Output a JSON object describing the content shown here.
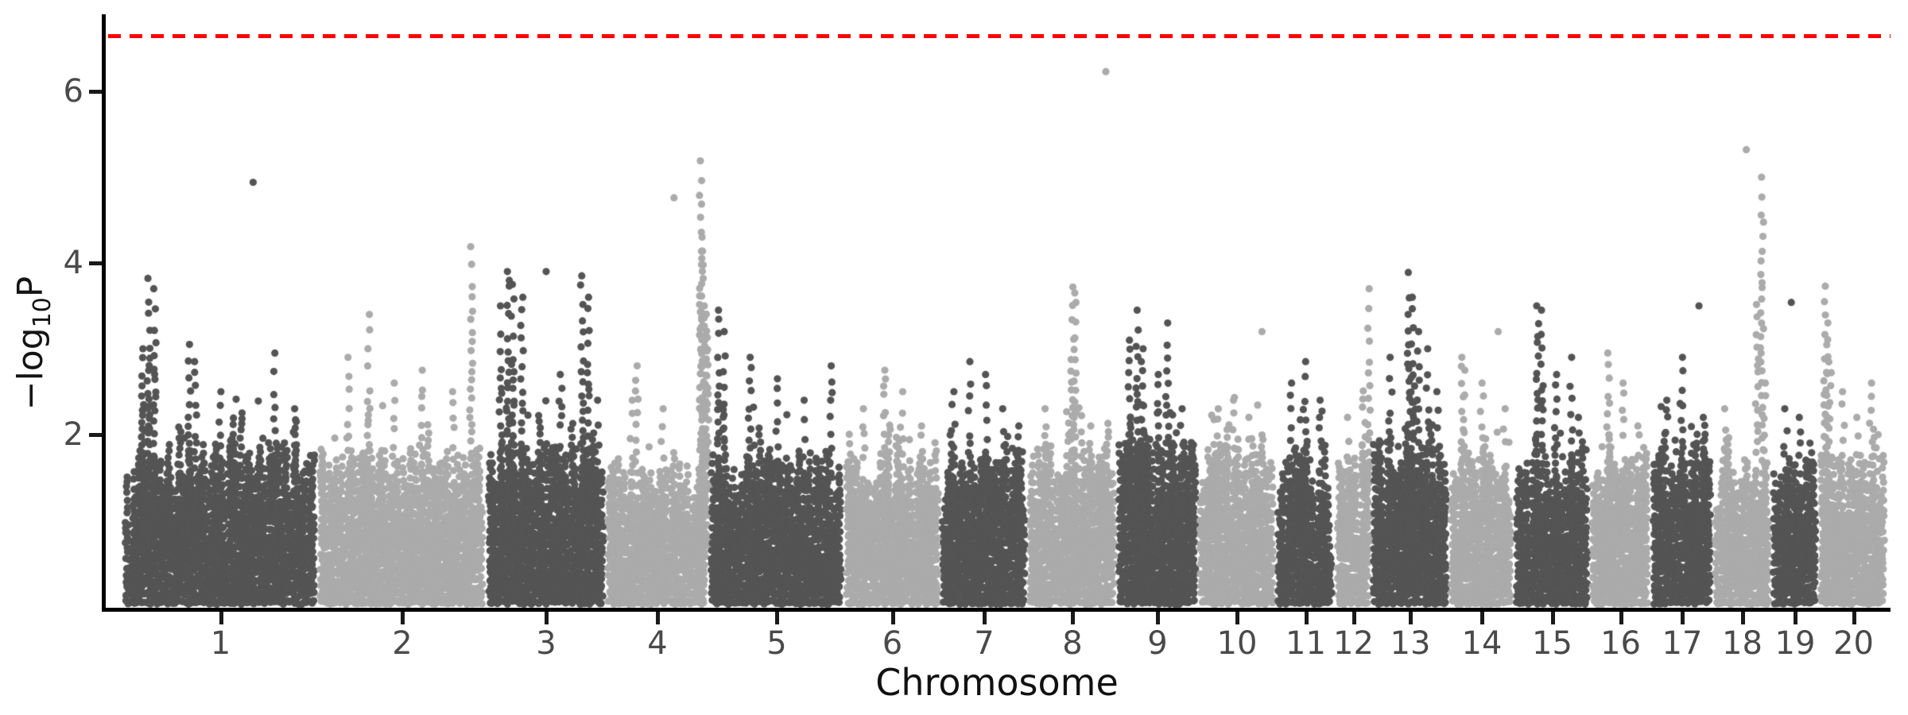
{
  "figure": {
    "kind": "GWAS Manhattan plot",
    "background": "#ffffff"
  },
  "chart_data": {
    "type": "scatter",
    "subtype": "manhattan",
    "title": "",
    "xlabel": "Chromosome",
    "ylabel": "-log10P",
    "ylabel_parts": {
      "prefix": "−log",
      "subscript": "10",
      "suffix": "P"
    },
    "ylim": [
      0,
      6.9
    ],
    "yticks": [
      2,
      4,
      6
    ],
    "grid": false,
    "legend": "none",
    "threshold_line": {
      "value": 6.65,
      "color": "#FF0000",
      "style": "dashed"
    },
    "point_colors": {
      "odd_chromosomes": "#545454",
      "even_chromosomes": "#ABABAB"
    },
    "axis_color": "#000000",
    "tick_label_color": "#4a4a4a",
    "axis_title_color": "#141414",
    "notable_points": [
      {
        "chromosome": "8",
        "neg_log10_p": 6.23
      },
      {
        "chromosome": "18",
        "neg_log10_p": 5.32
      },
      {
        "chromosome": "4",
        "neg_log10_p": 5.19
      },
      {
        "chromosome": "1",
        "neg_log10_p": 4.94
      },
      {
        "chromosome": "2",
        "neg_log10_p": 4.19
      }
    ],
    "chromosomes": [
      {
        "label": "1",
        "rel_width": 245,
        "base_max": 1.9,
        "peaks": [
          [
            0.1,
            3.0,
            0
          ],
          [
            0.13,
            3.82,
            0
          ],
          [
            0.16,
            3.7,
            0
          ],
          [
            0.34,
            3.05,
            0
          ],
          [
            0.37,
            2.85,
            0
          ],
          [
            0.5,
            2.5,
            0
          ],
          [
            0.667,
            4.94,
            1
          ],
          [
            0.78,
            2.95,
            0
          ],
          [
            0.88,
            2.3,
            0
          ]
        ]
      },
      {
        "label": "2",
        "rel_width": 212,
        "base_max": 1.8,
        "peaks": [
          [
            0.18,
            2.9,
            0
          ],
          [
            0.3,
            3.4,
            0
          ],
          [
            0.45,
            2.6,
            0
          ],
          [
            0.62,
            2.75,
            0
          ],
          [
            0.8,
            2.5,
            0
          ],
          [
            0.91,
            4.19,
            0
          ]
        ]
      },
      {
        "label": "3",
        "rel_width": 150,
        "base_max": 1.85,
        "peaks": [
          [
            0.12,
            3.5,
            0
          ],
          [
            0.18,
            3.9,
            0
          ],
          [
            0.22,
            3.75,
            0
          ],
          [
            0.3,
            3.6,
            0
          ],
          [
            0.5,
            3.9,
            1
          ],
          [
            0.62,
            2.7,
            0
          ],
          [
            0.8,
            3.85,
            0
          ],
          [
            0.85,
            3.6,
            0
          ],
          [
            0.93,
            2.4,
            0
          ]
        ]
      },
      {
        "label": "4",
        "rel_width": 130,
        "base_max": 1.7,
        "peaks": [
          [
            0.25,
            2.4,
            0
          ],
          [
            0.3,
            2.8,
            0
          ],
          [
            0.55,
            2.3,
            0
          ],
          [
            0.66,
            4.76,
            1
          ],
          [
            0.915,
            5.19,
            1
          ],
          [
            0.92,
            4.96,
            0
          ],
          [
            0.93,
            4.3,
            0
          ],
          [
            0.96,
            3.5,
            0
          ]
        ]
      },
      {
        "label": "5",
        "rel_width": 170,
        "base_max": 1.8,
        "peaks": [
          [
            0.07,
            3.45,
            0
          ],
          [
            0.11,
            3.2,
            0
          ],
          [
            0.3,
            2.9,
            0
          ],
          [
            0.5,
            2.65,
            0
          ],
          [
            0.7,
            2.4,
            0
          ],
          [
            0.9,
            2.8,
            0
          ]
        ]
      },
      {
        "label": "6",
        "rel_width": 121,
        "base_max": 1.75,
        "peaks": [
          [
            0.2,
            2.3,
            0
          ],
          [
            0.42,
            2.75,
            0
          ],
          [
            0.6,
            2.5,
            0
          ],
          [
            0.8,
            2.1,
            0
          ]
        ]
      },
      {
        "label": "7",
        "rel_width": 110,
        "base_max": 1.8,
        "peaks": [
          [
            0.15,
            2.5,
            0
          ],
          [
            0.33,
            2.85,
            0
          ],
          [
            0.52,
            2.7,
            0
          ],
          [
            0.72,
            2.3,
            0
          ],
          [
            0.9,
            2.1,
            0
          ]
        ]
      },
      {
        "label": "8",
        "rel_width": 112,
        "base_max": 1.85,
        "peaks": [
          [
            0.2,
            2.3,
            0
          ],
          [
            0.5,
            3.72,
            0
          ],
          [
            0.53,
            3.65,
            0
          ],
          [
            0.7,
            2.1,
            0
          ],
          [
            0.875,
            6.23,
            1
          ]
        ]
      },
      {
        "label": "9",
        "rel_width": 102,
        "base_max": 2.0,
        "peaks": [
          [
            0.15,
            3.1,
            0
          ],
          [
            0.25,
            3.45,
            0
          ],
          [
            0.32,
            3.0,
            0
          ],
          [
            0.5,
            2.7,
            0
          ],
          [
            0.62,
            3.3,
            0
          ],
          [
            0.8,
            2.3,
            0
          ]
        ]
      },
      {
        "label": "10",
        "rel_width": 98,
        "base_max": 1.95,
        "peaks": [
          [
            0.25,
            2.3,
            0
          ],
          [
            0.45,
            2.4,
            0
          ],
          [
            0.65,
            2.2,
            0
          ],
          [
            0.82,
            3.2,
            1
          ]
        ]
      },
      {
        "label": "11",
        "rel_width": 75,
        "base_max": 1.85,
        "peaks": [
          [
            0.25,
            2.6,
            0
          ],
          [
            0.5,
            2.85,
            0
          ],
          [
            0.75,
            2.4,
            0
          ]
        ]
      },
      {
        "label": "12",
        "rel_width": 45,
        "base_max": 1.9,
        "peaks": [
          [
            0.35,
            2.2,
            0
          ],
          [
            0.93,
            3.7,
            0
          ]
        ]
      },
      {
        "label": "13",
        "rel_width": 98,
        "base_max": 1.95,
        "peaks": [
          [
            0.25,
            2.9,
            0
          ],
          [
            0.48,
            3.89,
            0
          ],
          [
            0.52,
            3.6,
            0
          ],
          [
            0.6,
            3.2,
            0
          ],
          [
            0.72,
            3.0,
            0
          ],
          [
            0.85,
            2.5,
            0
          ]
        ]
      },
      {
        "label": "14",
        "rel_width": 82,
        "base_max": 1.8,
        "peaks": [
          [
            0.2,
            2.9,
            0
          ],
          [
            0.23,
            2.75,
            0
          ],
          [
            0.5,
            2.6,
            0
          ],
          [
            0.75,
            3.2,
            1
          ],
          [
            0.85,
            2.3,
            0
          ]
        ]
      },
      {
        "label": "15",
        "rel_width": 95,
        "base_max": 1.75,
        "peaks": [
          [
            0.3,
            3.5,
            0
          ],
          [
            0.36,
            3.45,
            0
          ],
          [
            0.55,
            2.7,
            0
          ],
          [
            0.75,
            2.9,
            0
          ],
          [
            0.85,
            2.2,
            0
          ]
        ]
      },
      {
        "label": "16",
        "rel_width": 77,
        "base_max": 1.8,
        "peaks": [
          [
            0.3,
            2.95,
            0
          ],
          [
            0.55,
            2.6,
            0
          ],
          [
            0.78,
            2.1,
            0
          ]
        ]
      },
      {
        "label": "17",
        "rel_width": 78,
        "base_max": 1.85,
        "peaks": [
          [
            0.25,
            2.4,
            0
          ],
          [
            0.5,
            2.9,
            0
          ],
          [
            0.77,
            3.5,
            1
          ],
          [
            0.85,
            2.2,
            0
          ]
        ]
      },
      {
        "label": "18",
        "rel_width": 73,
        "base_max": 1.7,
        "peaks": [
          [
            0.2,
            2.3,
            0
          ],
          [
            0.57,
            5.32,
            1
          ],
          [
            0.84,
            5.0,
            0
          ],
          [
            0.9,
            2.6,
            0
          ]
        ]
      },
      {
        "label": "19",
        "rel_width": 60,
        "base_max": 1.8,
        "peaks": [
          [
            0.3,
            2.3,
            0
          ],
          [
            0.42,
            3.54,
            1
          ],
          [
            0.6,
            2.2,
            0
          ],
          [
            0.8,
            1.9,
            0
          ]
        ]
      },
      {
        "label": "20",
        "rel_width": 87,
        "base_max": 1.8,
        "peaks": [
          [
            0.09,
            3.73,
            0
          ],
          [
            0.12,
            3.3,
            0
          ],
          [
            0.35,
            2.5,
            0
          ],
          [
            0.55,
            2.2,
            0
          ],
          [
            0.75,
            2.6,
            0
          ],
          [
            0.85,
            2.0,
            0
          ]
        ]
      }
    ]
  }
}
